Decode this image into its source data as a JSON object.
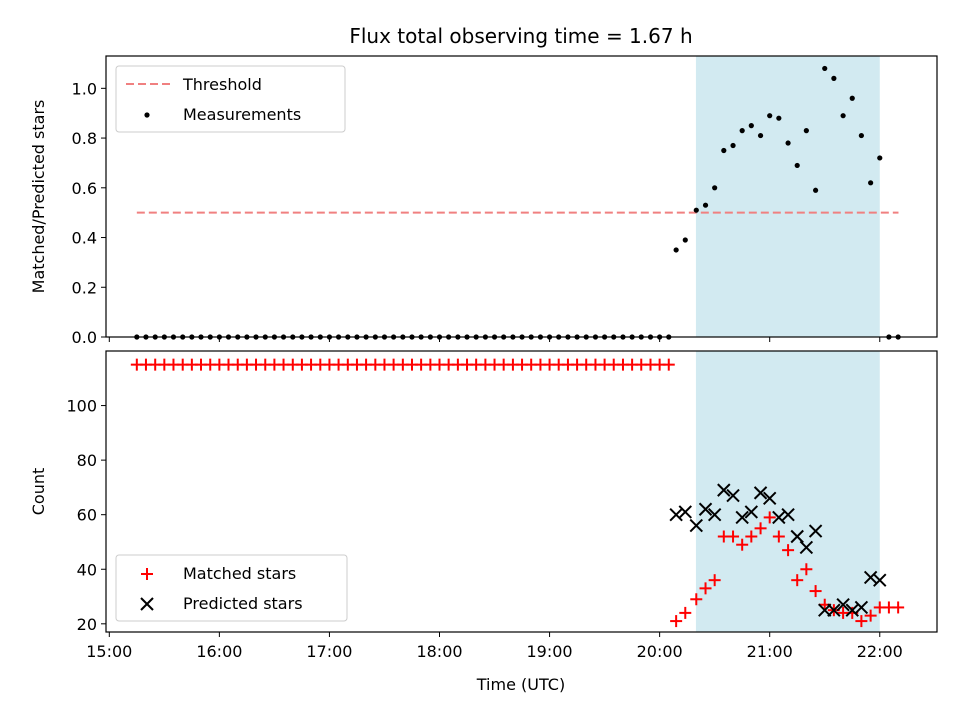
{
  "title": "Flux total observing time = 1.67 h",
  "chart_data": [
    {
      "type": "scatter",
      "ylabel": "Matched/Predicted stars",
      "xlim": [
        14.97,
        22.52
      ],
      "ylim": [
        0,
        1.13
      ],
      "yticks": [
        0.0,
        0.2,
        0.4,
        0.6,
        0.8,
        1.0
      ],
      "shaded_span": [
        20.33,
        22.0
      ],
      "shaded_color": "#add8e6",
      "threshold": {
        "name": "Threshold",
        "y": 0.5,
        "x": [
          15.25,
          22.17
        ],
        "color": "#f08080",
        "style": "dashed"
      },
      "series": [
        {
          "name": "Measurements",
          "marker": "dot",
          "color": "#000000",
          "x": [
            15.25,
            15.333,
            15.417,
            15.5,
            15.583,
            15.667,
            15.75,
            15.833,
            15.917,
            16.0,
            16.083,
            16.167,
            16.25,
            16.333,
            16.417,
            16.5,
            16.583,
            16.667,
            16.75,
            16.833,
            16.917,
            17.0,
            17.083,
            17.167,
            17.25,
            17.333,
            17.417,
            17.5,
            17.583,
            17.667,
            17.75,
            17.833,
            17.917,
            18.0,
            18.083,
            18.167,
            18.25,
            18.333,
            18.417,
            18.5,
            18.583,
            18.667,
            18.75,
            18.833,
            18.917,
            19.0,
            19.083,
            19.167,
            19.25,
            19.333,
            19.417,
            19.5,
            19.583,
            19.667,
            19.75,
            19.833,
            19.917,
            20.0,
            20.083,
            20.15,
            20.233,
            20.333,
            20.417,
            20.5,
            20.583,
            20.667,
            20.75,
            20.833,
            20.917,
            21.0,
            21.083,
            21.167,
            21.25,
            21.333,
            21.417,
            21.5,
            21.583,
            21.667,
            21.75,
            21.833,
            21.917,
            22.0,
            22.083,
            22.167
          ],
          "y": [
            0,
            0,
            0,
            0,
            0,
            0,
            0,
            0,
            0,
            0,
            0,
            0,
            0,
            0,
            0,
            0,
            0,
            0,
            0,
            0,
            0,
            0,
            0,
            0,
            0,
            0,
            0,
            0,
            0,
            0,
            0,
            0,
            0,
            0,
            0,
            0,
            0,
            0,
            0,
            0,
            0,
            0,
            0,
            0,
            0,
            0,
            0,
            0,
            0,
            0,
            0,
            0,
            0,
            0,
            0,
            0,
            0,
            0,
            0,
            0.35,
            0.39,
            0.51,
            0.53,
            0.6,
            0.75,
            0.77,
            0.83,
            0.85,
            0.81,
            0.89,
            0.88,
            0.78,
            0.69,
            0.83,
            0.59,
            1.08,
            1.04,
            0.89,
            0.96,
            0.81,
            0.62,
            0.72,
            0,
            0
          ]
        }
      ],
      "legend": {
        "position": "top-left",
        "entries": [
          "Threshold",
          "Measurements"
        ]
      }
    },
    {
      "type": "scatter",
      "xlabel": "Time (UTC)",
      "ylabel": "Count",
      "xlim": [
        14.97,
        22.52
      ],
      "ylim": [
        17,
        120
      ],
      "yticks": [
        20,
        40,
        60,
        80,
        100
      ],
      "xticks": [
        {
          "value": 15,
          "label": "15:00"
        },
        {
          "value": 16,
          "label": "16:00"
        },
        {
          "value": 17,
          "label": "17:00"
        },
        {
          "value": 18,
          "label": "18:00"
        },
        {
          "value": 19,
          "label": "19:00"
        },
        {
          "value": 20,
          "label": "20:00"
        },
        {
          "value": 21,
          "label": "21:00"
        },
        {
          "value": 22,
          "label": "22:00"
        }
      ],
      "shaded_span": [
        20.33,
        22.0
      ],
      "shaded_color": "#add8e6",
      "series": [
        {
          "name": "Matched stars",
          "marker": "plus",
          "color": "#ff0000",
          "x": [
            15.25,
            15.333,
            15.417,
            15.5,
            15.583,
            15.667,
            15.75,
            15.833,
            15.917,
            16.0,
            16.083,
            16.167,
            16.25,
            16.333,
            16.417,
            16.5,
            16.583,
            16.667,
            16.75,
            16.833,
            16.917,
            17.0,
            17.083,
            17.167,
            17.25,
            17.333,
            17.417,
            17.5,
            17.583,
            17.667,
            17.75,
            17.833,
            17.917,
            18.0,
            18.083,
            18.167,
            18.25,
            18.333,
            18.417,
            18.5,
            18.583,
            18.667,
            18.75,
            18.833,
            18.917,
            19.0,
            19.083,
            19.167,
            19.25,
            19.333,
            19.417,
            19.5,
            19.583,
            19.667,
            19.75,
            19.833,
            19.917,
            20.0,
            20.083,
            20.15,
            20.233,
            20.333,
            20.417,
            20.5,
            20.583,
            20.667,
            20.75,
            20.833,
            20.917,
            21.0,
            21.083,
            21.167,
            21.25,
            21.333,
            21.417,
            21.5,
            21.583,
            21.667,
            21.75,
            21.833,
            21.917,
            22.0,
            22.083,
            22.167
          ],
          "y": [
            115,
            115,
            115,
            115,
            115,
            115,
            115,
            115,
            115,
            115,
            115,
            115,
            115,
            115,
            115,
            115,
            115,
            115,
            115,
            115,
            115,
            115,
            115,
            115,
            115,
            115,
            115,
            115,
            115,
            115,
            115,
            115,
            115,
            115,
            115,
            115,
            115,
            115,
            115,
            115,
            115,
            115,
            115,
            115,
            115,
            115,
            115,
            115,
            115,
            115,
            115,
            115,
            115,
            115,
            115,
            115,
            115,
            115,
            115,
            21,
            24,
            29,
            33,
            36,
            52,
            52,
            49,
            52,
            55,
            59,
            52,
            47,
            36,
            40,
            32,
            27,
            25,
            24,
            24,
            21,
            23,
            26,
            26,
            26
          ]
        },
        {
          "name": "Predicted stars",
          "marker": "x",
          "color": "#000000",
          "x": [
            20.15,
            20.233,
            20.333,
            20.417,
            20.5,
            20.583,
            20.667,
            20.75,
            20.833,
            20.917,
            21.0,
            21.083,
            21.167,
            21.25,
            21.333,
            21.417,
            21.5,
            21.583,
            21.667,
            21.75,
            21.833,
            21.917,
            22.0
          ],
          "y": [
            60,
            61,
            56,
            62,
            60,
            69,
            67,
            59,
            61,
            68,
            66,
            59,
            60,
            52,
            48,
            54,
            25,
            25,
            27,
            25,
            26,
            37,
            36
          ]
        }
      ],
      "legend": {
        "position": "bottom-left",
        "entries": [
          "Matched stars",
          "Predicted stars"
        ]
      }
    }
  ]
}
